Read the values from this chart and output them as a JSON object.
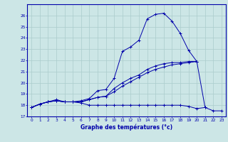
{
  "x": [
    0,
    1,
    2,
    3,
    4,
    5,
    6,
    7,
    8,
    9,
    10,
    11,
    12,
    13,
    14,
    15,
    16,
    17,
    18,
    19,
    20,
    21,
    22,
    23
  ],
  "line1": [
    17.8,
    18.1,
    18.3,
    18.5,
    18.3,
    18.3,
    18.4,
    18.6,
    19.3,
    19.4,
    20.4,
    22.8,
    23.2,
    23.8,
    25.7,
    26.1,
    26.2,
    25.5,
    24.4,
    22.9,
    21.9,
    null,
    null,
    null
  ],
  "line2": [
    17.8,
    18.1,
    18.3,
    18.4,
    18.3,
    18.3,
    18.3,
    18.5,
    18.7,
    18.8,
    19.5,
    20.0,
    20.4,
    20.7,
    21.2,
    21.5,
    21.7,
    21.8,
    21.8,
    21.9,
    21.9,
    17.8,
    null,
    null
  ],
  "line3": [
    17.8,
    18.1,
    18.3,
    18.4,
    18.3,
    18.3,
    18.3,
    18.5,
    18.7,
    18.8,
    19.2,
    19.7,
    20.1,
    20.5,
    20.9,
    21.2,
    21.4,
    21.6,
    21.7,
    21.8,
    21.9,
    null,
    null,
    null
  ],
  "line4": [
    17.8,
    18.1,
    18.3,
    18.4,
    18.3,
    18.3,
    18.2,
    18.0,
    18.0,
    18.0,
    18.0,
    18.0,
    18.0,
    18.0,
    18.0,
    18.0,
    18.0,
    18.0,
    18.0,
    17.9,
    17.7,
    17.8,
    17.5,
    17.5
  ],
  "bg_color": "#cce6e6",
  "line_color": "#0000aa",
  "grid_color": "#aacccc",
  "xlabel": "Graphe des températures (°c)",
  "ylim": [
    17,
    27
  ],
  "xlim": [
    -0.5,
    23.5
  ],
  "yticks": [
    17,
    18,
    19,
    20,
    21,
    22,
    23,
    24,
    25,
    26
  ],
  "xticks": [
    0,
    1,
    2,
    3,
    4,
    5,
    6,
    7,
    8,
    9,
    10,
    11,
    12,
    13,
    14,
    15,
    16,
    17,
    18,
    19,
    20,
    21,
    22,
    23
  ]
}
